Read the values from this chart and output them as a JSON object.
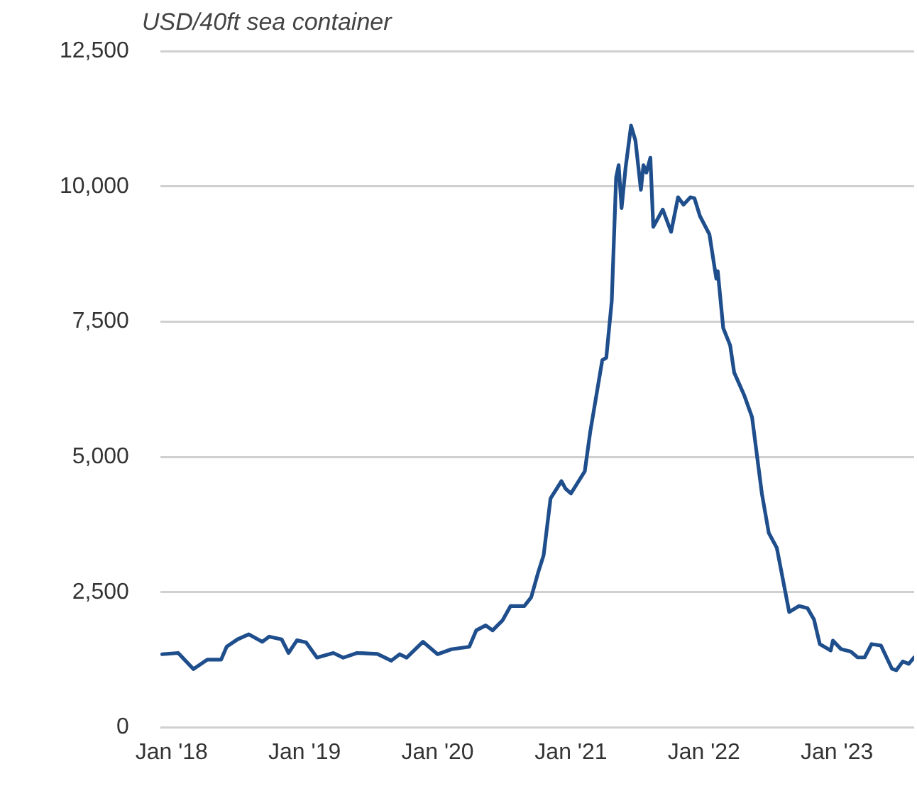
{
  "chart_data": {
    "type": "line",
    "ylabel": "USD/40ft sea container",
    "x": [
      "2017-12-06",
      "2018-01-19",
      "2018-03-02",
      "2018-04-09",
      "2018-05-17",
      "2018-06-01",
      "2018-07-01",
      "2018-08-01",
      "2018-09-07",
      "2018-09-26",
      "2018-10-30",
      "2018-11-18",
      "2018-12-11",
      "2019-01-05",
      "2019-02-04",
      "2019-03-21",
      "2019-04-17",
      "2019-05-25",
      "2019-07-20",
      "2019-08-27",
      "2019-09-19",
      "2019-10-08",
      "2019-11-22",
      "2020-01-01",
      "2020-02-08",
      "2020-03-28",
      "2020-04-16",
      "2020-05-12",
      "2020-05-31",
      "2020-06-27",
      "2020-07-19",
      "2020-08-26",
      "2020-09-14",
      "2020-10-03",
      "2020-10-18",
      "2020-11-06",
      "2020-12-06",
      "2020-12-17",
      "2021-01-01",
      "2021-02-08",
      "2021-02-23",
      "2021-03-28",
      "2021-04-08",
      "2021-04-23",
      "2021-05-05",
      "2021-05-12",
      "2021-05-20",
      "2021-05-31",
      "2021-06-15",
      "2021-06-27",
      "2021-07-12",
      "2021-07-19",
      "2021-07-27",
      "2021-08-07",
      "2021-08-15",
      "2021-09-10",
      "2021-10-03",
      "2021-10-22",
      "2021-11-06",
      "2021-11-25",
      "2021-12-06",
      "2021-12-21",
      "2022-01-16",
      "2022-02-04",
      "2022-02-08",
      "2022-02-23",
      "2022-03-14",
      "2022-03-25",
      "2022-04-21",
      "2022-05-13",
      "2022-06-09",
      "2022-06-28",
      "2022-07-20",
      "2022-08-23",
      "2022-09-19",
      "2022-10-12",
      "2022-10-30",
      "2022-11-15",
      "2022-12-15",
      "2022-12-21",
      "2023-01-12",
      "2023-02-08",
      "2023-02-27",
      "2023-03-18",
      "2023-04-06",
      "2023-05-02",
      "2023-06-01",
      "2023-06-13",
      "2023-07-01",
      "2023-07-17",
      "2023-08-01"
    ],
    "series": [
      {
        "color": "#1f4e8c",
        "values": [
          1355,
          1378,
          1080,
          1255,
          1255,
          1493,
          1630,
          1722,
          1585,
          1680,
          1630,
          1378,
          1612,
          1575,
          1291,
          1378,
          1291,
          1378,
          1360,
          1236,
          1355,
          1291,
          1585,
          1355,
          1447,
          1493,
          1795,
          1887,
          1795,
          1978,
          2244,
          2244,
          2408,
          2866,
          3184,
          4234,
          4553,
          4416,
          4325,
          4735,
          5465,
          6788,
          6834,
          7883,
          10164,
          10392,
          9599,
          10347,
          11122,
          10849,
          9936,
          10392,
          10255,
          10529,
          9252,
          9571,
          9160,
          9799,
          9662,
          9799,
          9781,
          9452,
          9115,
          8294,
          8431,
          7381,
          7062,
          6560,
          6150,
          5739,
          4325,
          3595,
          3321,
          2135,
          2245,
          2208,
          1998,
          1542,
          1423,
          1606,
          1451,
          1405,
          1296,
          1296,
          1542,
          1515,
          1086,
          1058,
          1223,
          1177,
          1296
        ]
      }
    ],
    "xlim": [
      "2017-12-01",
      "2023-08-01"
    ],
    "xticks": [
      {
        "value": "2018-01-01",
        "label": "Jan '18"
      },
      {
        "value": "2019-01-01",
        "label": "Jan '19"
      },
      {
        "value": "2020-01-01",
        "label": "Jan '20"
      },
      {
        "value": "2021-01-01",
        "label": "Jan '21"
      },
      {
        "value": "2022-01-01",
        "label": "Jan '22"
      },
      {
        "value": "2023-01-01",
        "label": "Jan '23"
      }
    ],
    "ylim": [
      0,
      12500
    ],
    "yticks": [
      0,
      {
        "value": 2500,
        "label": "2,500"
      },
      {
        "value": 5000,
        "label": "5,000"
      },
      {
        "value": 7500,
        "label": "7,500"
      },
      {
        "value": 10000,
        "label": "10,000"
      },
      {
        "value": 12500,
        "label": "12,500"
      }
    ],
    "grid": "y",
    "legend": false,
    "marker": "none",
    "line_style": "solid"
  }
}
